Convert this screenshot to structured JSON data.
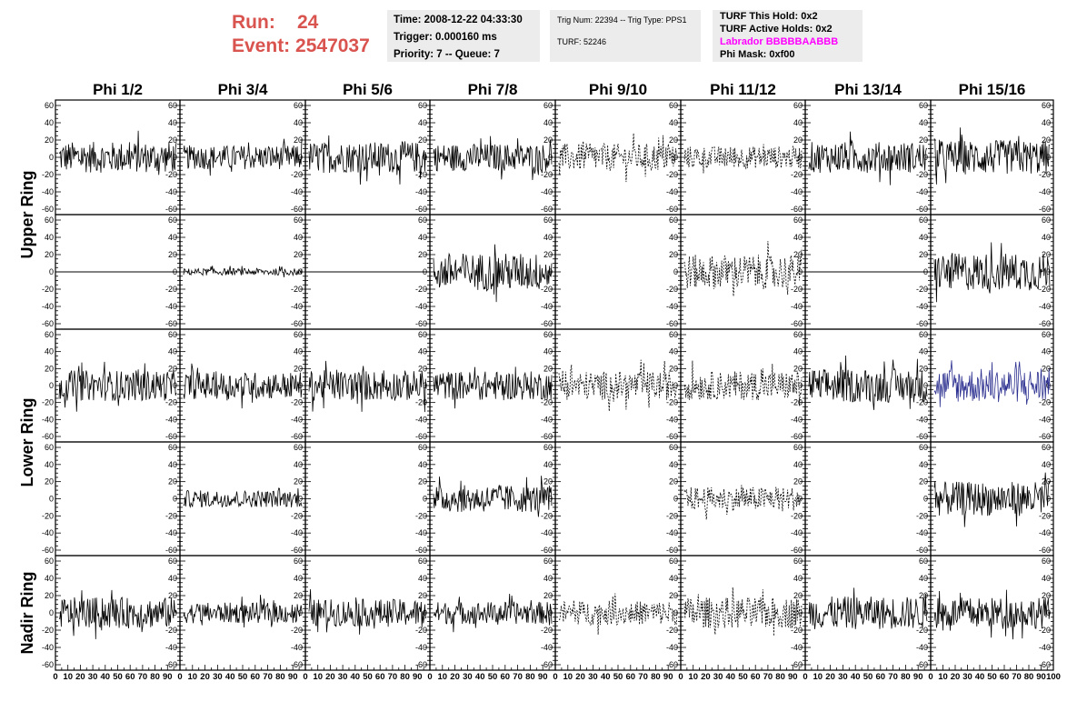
{
  "header": {
    "run_label": "Run:",
    "run_value": "24",
    "event_label": "Event:",
    "event_value": "2547037",
    "time": "Time: 2008-12-22 04:33:30",
    "trigger": "Trigger: 0.000160 ms",
    "priority": "Priority: 7 -- Queue: 7",
    "trig_info": "Trig Num: 22394 -- Trig Type: PPS1",
    "turf": "TURF: 52246",
    "turf_this_hold": "TURF This Hold: 0x2",
    "turf_active_holds": "TURF Active Holds: 0x2",
    "labrador": "Labrador BBBBBAABBB",
    "phi_mask": "Phi Mask: 0xf00"
  },
  "chart_data": {
    "type": "line",
    "columns": [
      "Phi 1/2",
      "Phi 3/4",
      "Phi 5/6",
      "Phi 7/8",
      "Phi 9/10",
      "Phi 11/12",
      "Phi 13/14",
      "Phi 15/16"
    ],
    "rows": [
      "Upper Ring",
      "Upper Ring",
      "Lower Ring",
      "Lower Ring",
      "Nadir Ring"
    ],
    "row_labels": [
      "Upper Ring",
      "Lower Ring",
      "Nadir Ring"
    ],
    "ylim": [
      -60,
      60
    ],
    "xlim": [
      0,
      100
    ],
    "y_ticks": [
      -60,
      -40,
      -20,
      0,
      20,
      40,
      60
    ],
    "x_ticks": [
      0,
      10,
      20,
      30,
      40,
      50,
      60,
      70,
      80,
      90,
      100
    ],
    "grid": false,
    "colors": {
      "trace": "#000000",
      "highlight": "#2b2f8f",
      "run_text": "#d9534f",
      "labrador": "#ff00ff",
      "box_bg": "#ececec"
    },
    "panels": [
      [
        {
          "amp": 18,
          "style": "solid"
        },
        {
          "amp": 14,
          "style": "solid"
        },
        {
          "amp": 18,
          "style": "solid"
        },
        {
          "amp": 16,
          "style": "solid"
        },
        {
          "amp": 16,
          "style": "dashed"
        },
        {
          "amp": 13,
          "style": "dashed"
        },
        {
          "amp": 18,
          "style": "solid"
        },
        {
          "amp": 20,
          "style": "solid"
        }
      ],
      [
        {
          "amp": 0,
          "style": "flat"
        },
        {
          "amp": 4,
          "style": "solid"
        },
        {
          "amp": 0,
          "style": "flat"
        },
        {
          "amp": 22,
          "style": "solid"
        },
        {
          "amp": 0,
          "style": "none"
        },
        {
          "amp": 20,
          "style": "dashed"
        },
        {
          "amp": 0,
          "style": "flat"
        },
        {
          "amp": 22,
          "style": "solid"
        }
      ],
      [
        {
          "amp": 18,
          "style": "solid"
        },
        {
          "amp": 16,
          "style": "solid"
        },
        {
          "amp": 18,
          "style": "solid"
        },
        {
          "amp": 17,
          "style": "solid"
        },
        {
          "amp": 17,
          "style": "dashed"
        },
        {
          "amp": 17,
          "style": "dashed"
        },
        {
          "amp": 20,
          "style": "solid"
        },
        {
          "amp": 20,
          "style": "highlight"
        }
      ],
      [
        {
          "amp": 0,
          "style": "none"
        },
        {
          "amp": 10,
          "style": "solid"
        },
        {
          "amp": 0,
          "style": "none"
        },
        {
          "amp": 16,
          "style": "solid"
        },
        {
          "amp": 0,
          "style": "none"
        },
        {
          "amp": 14,
          "style": "dashed"
        },
        {
          "amp": 0,
          "style": "none"
        },
        {
          "amp": 20,
          "style": "solid"
        }
      ],
      [
        {
          "amp": 18,
          "style": "solid"
        },
        {
          "amp": 12,
          "style": "solid"
        },
        {
          "amp": 16,
          "style": "solid"
        },
        {
          "amp": 13,
          "style": "solid"
        },
        {
          "amp": 14,
          "style": "dashed"
        },
        {
          "amp": 18,
          "style": "dashed"
        },
        {
          "amp": 19,
          "style": "solid"
        },
        {
          "amp": 18,
          "style": "solid"
        }
      ]
    ]
  }
}
